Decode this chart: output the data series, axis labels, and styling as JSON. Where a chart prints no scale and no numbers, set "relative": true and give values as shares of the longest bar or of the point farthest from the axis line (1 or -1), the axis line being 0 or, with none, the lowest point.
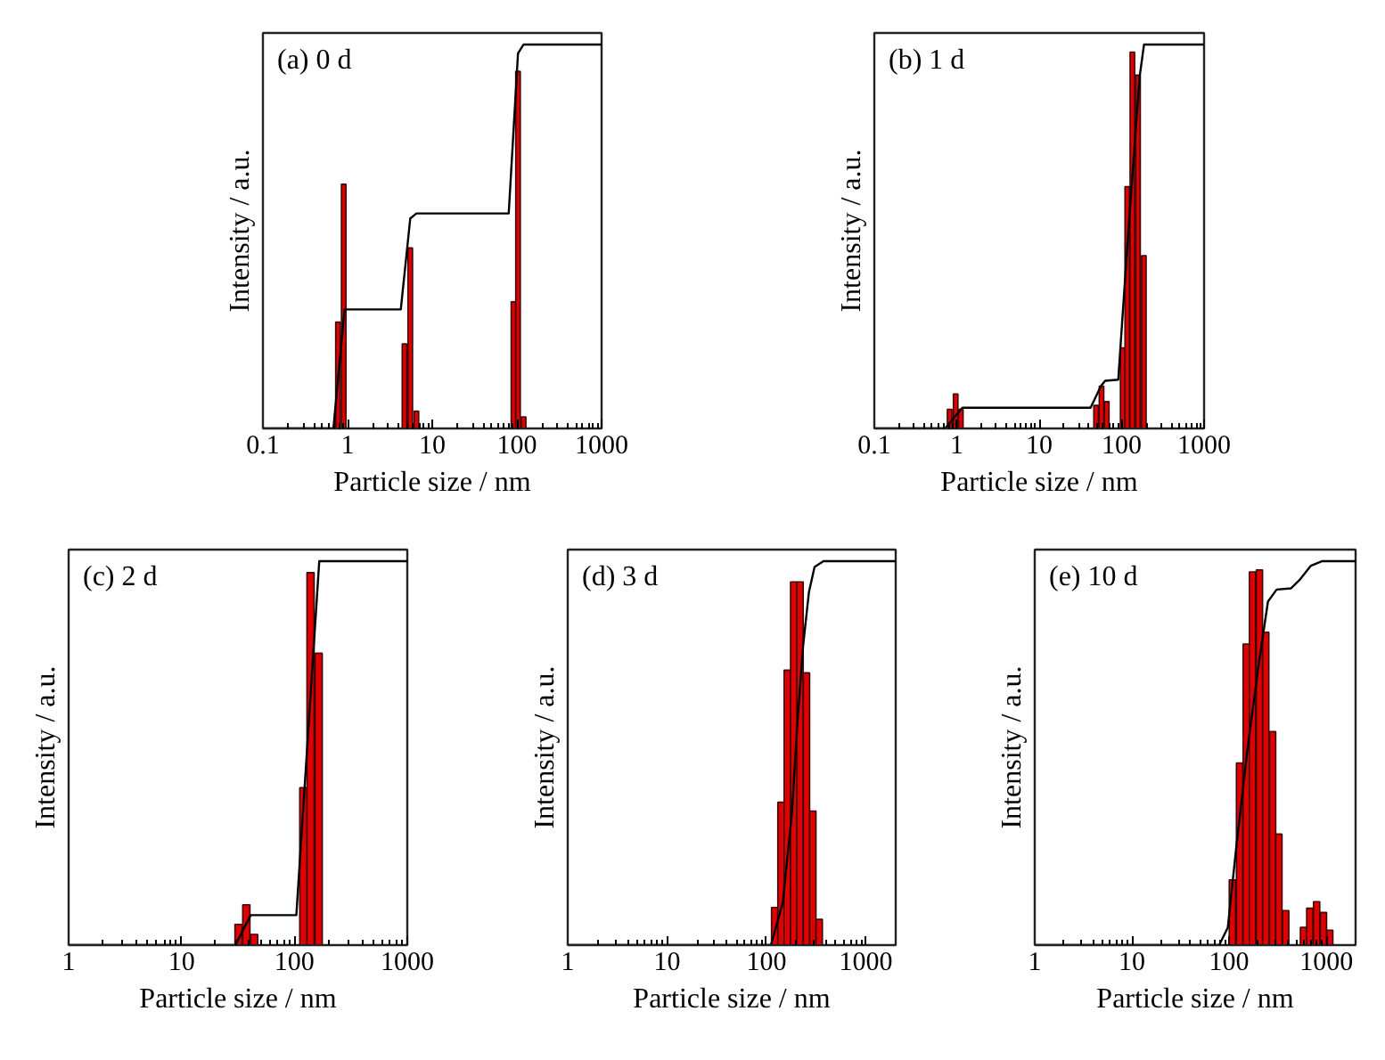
{
  "chart_data": [
    {
      "type": "bar",
      "title": "(a) 0 d",
      "xlabel": "Particle size / nm",
      "ylabel": "Intensity / a.u.",
      "relative": true,
      "log": "x",
      "tick_labels": "x",
      "xlim": [
        0.1,
        1000
      ],
      "xticks": [
        0.1,
        1,
        10,
        100,
        1000
      ],
      "series": [
        {
          "color": "#e00000",
          "x": [
            0.77,
            0.9,
            4.7,
            5.5,
            6.5,
            91,
            103,
            120
          ],
          "values": [
            0.277,
            0.636,
            0.22,
            0.47,
            0.045,
            0.33,
            0.93,
            0.03
          ]
        },
        {
          "type": "line",
          "color": "#000000",
          "x": [
            0.1,
            0.68,
            0.92,
            4.25,
            5.5,
            6.5,
            80,
            103,
            120,
            1000
          ],
          "values": [
            0,
            0,
            0.31,
            0.31,
            0.547,
            0.56,
            0.56,
            0.977,
            1.0,
            1.0
          ]
        }
      ]
    },
    {
      "type": "bar",
      "title": "(b) 1 d",
      "xlabel": "Particle size / nm",
      "ylabel": "Intensity / a.u.",
      "relative": true,
      "log": "x",
      "tick_labels": "x",
      "xlim": [
        0.1,
        1000
      ],
      "xticks": [
        0.1,
        1,
        10,
        100,
        1000
      ],
      "series": [
        {
          "color": "#e00000",
          "x": [
            0.82,
            0.97,
            1.12,
            49,
            57,
            66,
            103,
            117,
            135,
            158,
            186
          ],
          "values": [
            0.05,
            0.09,
            0.05,
            0.06,
            0.11,
            0.07,
            0.21,
            0.63,
            0.98,
            0.92,
            0.45
          ]
        },
        {
          "type": "line",
          "color": "#000000",
          "x": [
            0.1,
            0.72,
            1.17,
            42,
            56,
            63,
            91,
            115,
            165,
            187,
            1000
          ],
          "values": [
            0,
            0,
            0.054,
            0.054,
            0.11,
            0.124,
            0.127,
            0.45,
            0.915,
            1.0,
            1.0
          ]
        }
      ]
    },
    {
      "type": "bar",
      "title": "(c) 2 d",
      "xlabel": "Particle size / nm",
      "ylabel": "Intensity / a.u.",
      "relative": true,
      "log": "x",
      "tick_labels": "x",
      "xlim": [
        1,
        1000
      ],
      "xticks": [
        1,
        10,
        100,
        1000
      ],
      "series": [
        {
          "color": "#e00000",
          "x": [
            32,
            37.5,
            44,
            120,
            139,
            164
          ],
          "values": [
            0.054,
            0.105,
            0.028,
            0.41,
            0.97,
            0.76
          ]
        },
        {
          "type": "line",
          "color": "#000000",
          "x": [
            1,
            30,
            41,
            104,
            166,
            1000
          ],
          "values": [
            0,
            0,
            0.078,
            0.078,
            1.0,
            1.0
          ]
        }
      ]
    },
    {
      "type": "bar",
      "title": "(d) 3 d",
      "xlabel": "Particle size / nm",
      "ylabel": "Intensity / a.u.",
      "relative": true,
      "log": "x",
      "tick_labels": "x",
      "xlim": [
        1,
        2000
      ],
      "xticks": [
        1,
        10,
        100,
        1000
      ],
      "series": [
        {
          "color": "#e00000",
          "x": [
            121,
            140,
            162,
            188,
            218,
            253,
            293,
            340
          ],
          "values": [
            0.098,
            0.372,
            0.716,
            0.946,
            0.946,
            0.709,
            0.349,
            0.067
          ]
        },
        {
          "type": "line",
          "color": "#000000",
          "x": [
            1,
            111,
            146,
            180,
            204,
            234,
            268,
            305,
            375,
            2000
          ],
          "values": [
            0,
            0,
            0.11,
            0.34,
            0.57,
            0.78,
            0.92,
            0.985,
            1.0,
            1.0
          ]
        }
      ]
    },
    {
      "type": "bar",
      "title": "(e) 10 d",
      "xlabel": "Particle size / nm",
      "ylabel": "Intensity / a.u.",
      "relative": true,
      "log": "x",
      "tick_labels": "x",
      "xlim": [
        1,
        2000
      ],
      "xticks": [
        1,
        10,
        100,
        1000
      ],
      "series": [
        {
          "color": "#e00000",
          "x": [
            108,
            128,
            150,
            174,
            205,
            238,
            280,
            325,
            382,
            582,
            676,
            795,
            934,
            1084
          ],
          "values": [
            0.17,
            0.474,
            0.784,
            0.972,
            0.977,
            0.815,
            0.556,
            0.289,
            0.09,
            0.046,
            0.096,
            0.113,
            0.085,
            0.039
          ]
        },
        {
          "type": "line",
          "color": "#000000",
          "x": [
            1,
            79,
            97,
            119,
            156,
            204,
            251,
            308,
            432,
            527,
            694,
            910,
            2000
          ],
          "values": [
            0,
            0,
            0.046,
            0.26,
            0.52,
            0.74,
            0.895,
            0.926,
            0.929,
            0.95,
            0.988,
            1.0,
            1.0
          ]
        }
      ]
    }
  ]
}
